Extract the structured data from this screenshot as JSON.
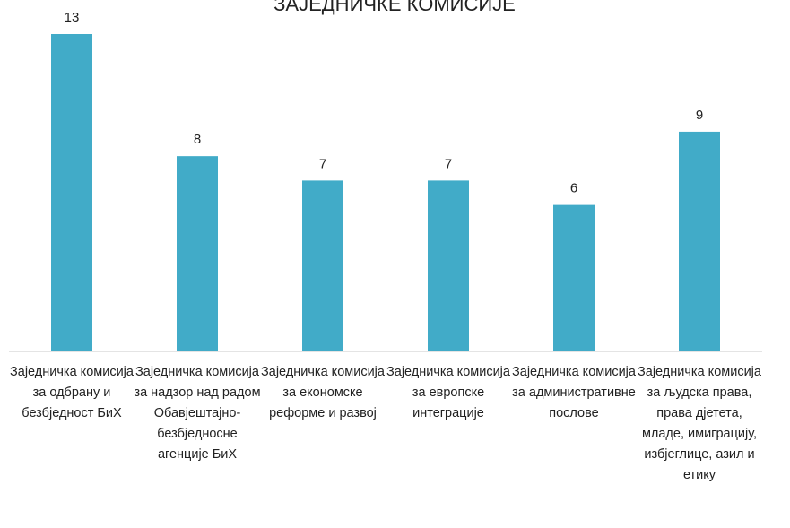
{
  "chart_data": {
    "type": "bar",
    "title": "ЗАЈЕДНИЧКЕ КОМИСИЈЕ",
    "categories": [
      "Заједничка комисија за одбрану и безбједност БиХ",
      "Заједничка комисија за надзор над радом Обавјештајно-безбједносне агенције БиХ",
      "Заједничка комисија за економске реформе и развој",
      "Заједничка комисија за европске интеграције",
      "Заједничка комисија за административне послове",
      "Заједничка комисија за људска права, права дјетета, младе, имиграцију, избјеглице, азил и етику"
    ],
    "values": [
      13,
      8,
      7,
      7,
      6,
      9
    ],
    "color": "#41abc8",
    "ylim": [
      0,
      13
    ]
  }
}
